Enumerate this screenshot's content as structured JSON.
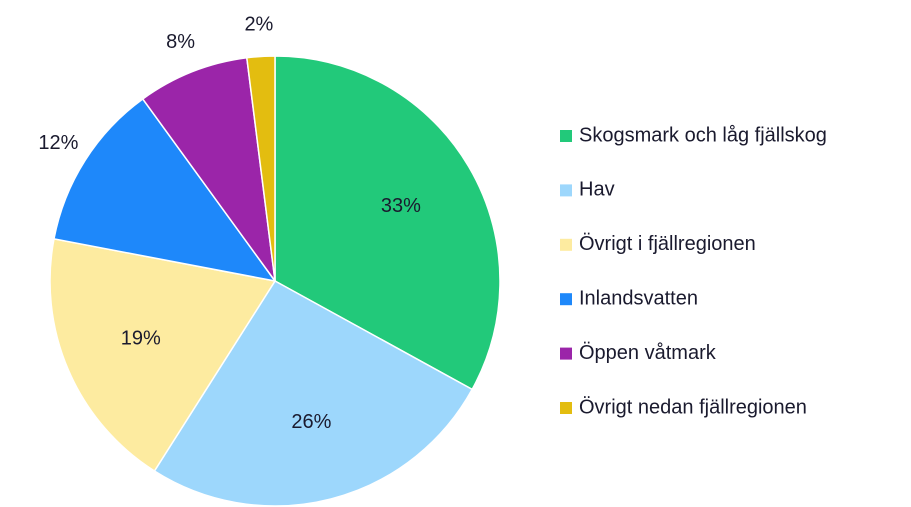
{
  "chart_data": {
    "type": "pie",
    "categories": [
      "Skogsmark och låg fjällskog",
      "Hav",
      "Övrigt i fjällregionen",
      "Inlandsvatten",
      "Öppen våtmark",
      "Övrigt nedan fjällregionen"
    ],
    "values": [
      33,
      26,
      19,
      12,
      8,
      2
    ],
    "value_labels": [
      "33%",
      "26%",
      "19%",
      "12%",
      "8%",
      "2%"
    ],
    "colors": [
      "#22c97a",
      "#9dd7fc",
      "#fdeba0",
      "#1e88fa",
      "#9b25a9",
      "#e3bd10"
    ],
    "legend": "right"
  }
}
